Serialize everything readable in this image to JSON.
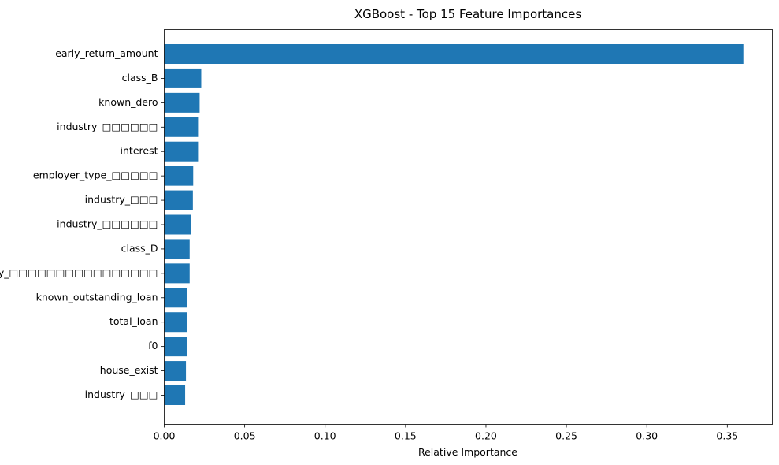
{
  "chart_data": {
    "type": "bar",
    "orientation": "horizontal",
    "title": "XGBoost - Top 15 Feature Importances",
    "xlabel": "Relative Importance",
    "ylabel": "",
    "xlim": [
      0,
      0.378
    ],
    "xticks": [
      "0.00",
      "0.05",
      "0.10",
      "0.15",
      "0.20",
      "0.25",
      "0.30",
      "0.35"
    ],
    "grid": false,
    "bar_color": "#1f77b4",
    "categories": [
      "early_return_amount",
      "class_B",
      "known_dero",
      "industry_□□□□□□",
      "interest",
      "employer_type_□□□□□",
      "industry_□□□",
      "industry_□□□□□□",
      "class_D",
      "industry_□□□□□□□□□□□□□□□□",
      "known_outstanding_loan",
      "total_loan",
      "f0",
      "house_exist",
      "industry_□□□"
    ],
    "values": [
      0.36,
      0.023,
      0.022,
      0.0215,
      0.0215,
      0.018,
      0.0178,
      0.0168,
      0.0158,
      0.0158,
      0.0142,
      0.0142,
      0.014,
      0.0135,
      0.013
    ]
  }
}
